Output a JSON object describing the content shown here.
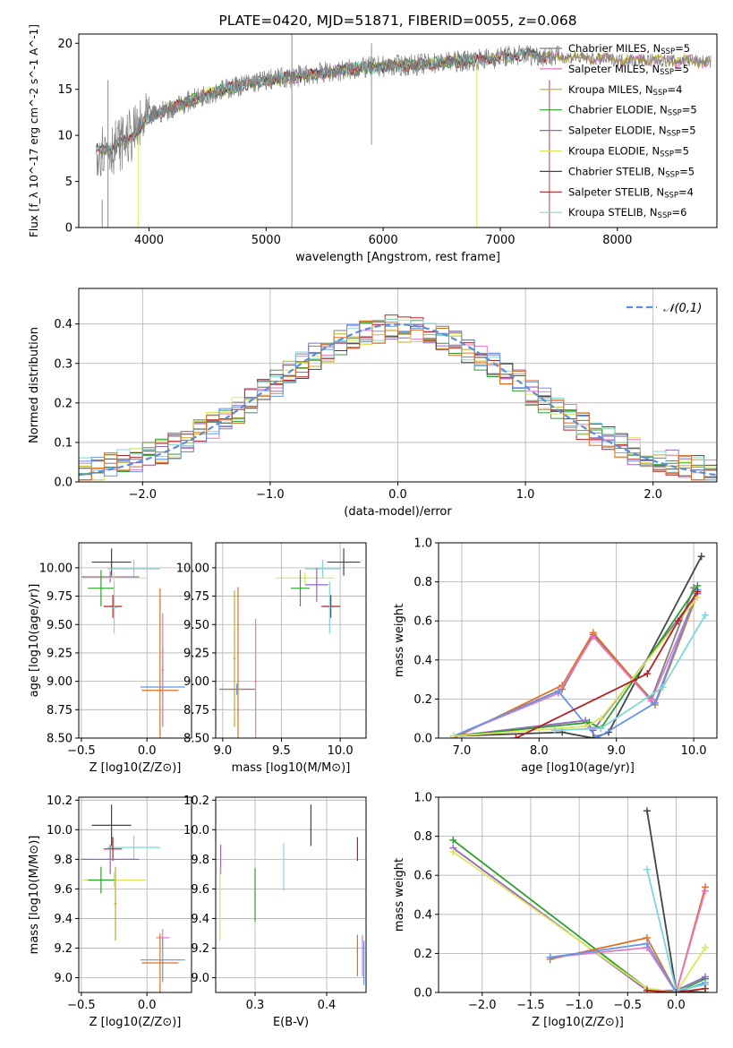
{
  "figure_title": "PLATE=0420, MJD=51871, FIBERID=0055, z=0.068",
  "colors": {
    "Chabrier MILES": "#7f7f7f",
    "Salpeter MILES": "#e377c2",
    "Kroupa MILES": "#bcae20",
    "Chabrier ELODIE": "#2ca02c",
    "Salpeter ELODIE": "#9467bd",
    "Kroupa ELODIE": "#dbe65a",
    "Chabrier STELIB": "#444444",
    "Salpeter STELIB": "#b22222",
    "Kroupa STELIB": "#7fd6da",
    "extra_blue": "#6495ed",
    "extra_orange": "#e07020",
    "grid": "#b0b0b0"
  },
  "chart_data": [
    {
      "type": "line",
      "panel": "spectrum",
      "xlabel": "wavelength [Angstrom, rest frame]",
      "ylabel": "Flux [f_λ 10^-17 erg cm^-2 s^-1 A^-1]",
      "xlim": [
        3400,
        8850
      ],
      "ylim": [
        0,
        21
      ],
      "xticks": [
        4000,
        5000,
        6000,
        7000,
        8000
      ],
      "yticks": [
        0,
        5,
        10,
        15,
        20
      ],
      "grid": false,
      "legend_position": "right",
      "legend": [
        {
          "label": "Chabrier MILES, N",
          "sub": "SSP",
          "suffix": "=5"
        },
        {
          "label": "Salpeter MILES, N",
          "sub": "SSP",
          "suffix": "=5"
        },
        {
          "label": "Kroupa MILES, N",
          "sub": "SSP",
          "suffix": "=4"
        },
        {
          "label": "Chabrier ELODIE, N",
          "sub": "SSP",
          "suffix": "=5"
        },
        {
          "label": "Salpeter ELODIE, N",
          "sub": "SSP",
          "suffix": "=5"
        },
        {
          "label": "Kroupa ELODIE, N",
          "sub": "SSP",
          "suffix": "=5"
        },
        {
          "label": "Chabrier STELIB, N",
          "sub": "SSP",
          "suffix": "=5"
        },
        {
          "label": "Salpeter STELIB, N",
          "sub": "SSP",
          "suffix": "=4"
        },
        {
          "label": "Kroupa STELIB, N",
          "sub": "SSP",
          "suffix": "=6"
        }
      ],
      "continuum": {
        "x": [
          3550,
          3700,
          3800,
          3900,
          4000,
          4100,
          4300,
          4500,
          4800,
          5000,
          5200,
          5500,
          5800,
          6000,
          6300,
          6600,
          6800,
          7000,
          7200,
          7400,
          7600,
          7800,
          8000,
          8200,
          8400,
          8600,
          8800
        ],
        "y": [
          8.5,
          8.7,
          9.5,
          10.5,
          12,
          12.5,
          13.5,
          14.5,
          15.5,
          16,
          16.3,
          16.8,
          17.3,
          17.5,
          17.7,
          18,
          18.2,
          18.5,
          18.8,
          18.6,
          18.5,
          18.3,
          18.2,
          18.2,
          18.1,
          18.1,
          18
        ]
      }
    },
    {
      "type": "bar",
      "panel": "residual histogram",
      "xlabel": "(data-model)/error",
      "ylabel": "Normed distribution",
      "xlim": [
        -2.5,
        2.5
      ],
      "ylim": [
        0,
        0.49
      ],
      "xticks": [
        -2,
        -1,
        0,
        1,
        2
      ],
      "yticks": [
        0.0,
        0.1,
        0.2,
        0.3,
        0.4
      ],
      "grid": true,
      "legend_position": "top-right",
      "legend": "𝒩(0,1)",
      "gaussian": {
        "mu": 0,
        "sigma": 1
      }
    },
    {
      "type": "scatter",
      "panel": "age vs Z",
      "xlabel": "Z [log10(Z/Z⊙)]",
      "ylabel": "age  [log10(age/yr)]",
      "xlim": [
        -0.52,
        0.34
      ],
      "ylim": [
        8.5,
        10.22
      ],
      "xticks": [
        -0.5,
        0.0
      ],
      "yticks": [
        8.5,
        8.75,
        9.0,
        9.25,
        9.5,
        9.75,
        10.0
      ],
      "grid": true,
      "points": [
        {
          "series": "Chabrier STELIB",
          "x": -0.27,
          "xerr": 0.15,
          "y": 10.05,
          "yerr": 0.12
        },
        {
          "series": "Kroupa STELIB",
          "x": -0.1,
          "xerr": 0.2,
          "y": 9.99,
          "yerr": 0.08
        },
        {
          "series": "Salpeter ELODIE",
          "x": -0.28,
          "xerr": 0.22,
          "y": 9.92,
          "yerr": 0.05
        },
        {
          "series": "Kroupa ELODIE",
          "x": -0.25,
          "xerr": 0.24,
          "y": 9.91,
          "yerr": 0.05
        },
        {
          "series": "Chabrier ELODIE",
          "x": -0.35,
          "xerr": 0.1,
          "y": 9.82,
          "yerr": 0.16
        },
        {
          "series": "Salpeter STELIB",
          "x": -0.26,
          "xerr": 0.07,
          "y": 9.66,
          "yerr": 0.1
        },
        {
          "series": "Kroupa STELIB",
          "x": -0.25,
          "xerr": 0.02,
          "y": 9.65,
          "yerr": 0.23
        },
        {
          "series": "extra_blue",
          "x": 0.12,
          "xerr": 0.17,
          "y": 8.95,
          "yerr": 0.35
        },
        {
          "series": "extra_orange",
          "x": 0.1,
          "xerr": 0.14,
          "y": 8.92,
          "yerr": 0.9
        },
        {
          "series": "Salpeter MILES",
          "x": 0.12,
          "xerr": 0.01,
          "y": 9.1,
          "yerr": 0.5
        }
      ]
    },
    {
      "type": "scatter",
      "panel": "age vs mass",
      "xlabel": "mass [log10(M/M⊙)]",
      "ylabel": "",
      "xlim": [
        8.94,
        10.22
      ],
      "ylim": [
        8.5,
        10.22
      ],
      "xticks": [
        9.0,
        9.5,
        10.0
      ],
      "yticks": [
        8.5,
        8.75,
        9.0,
        9.25,
        9.5,
        9.75,
        10.0
      ],
      "grid": true,
      "points": [
        {
          "series": "Chabrier STELIB",
          "x": 10.03,
          "xerr": 0.14,
          "y": 10.05,
          "yerr": 0.12
        },
        {
          "series": "Kroupa STELIB",
          "x": 9.85,
          "xerr": 0.15,
          "y": 9.99,
          "yerr": 0.08
        },
        {
          "series": "Kroupa ELODIE",
          "x": 9.7,
          "xerr": 0.25,
          "y": 9.91,
          "yerr": 0.05
        },
        {
          "series": "Chabrier ELODIE",
          "x": 9.66,
          "xerr": 0.08,
          "y": 9.82,
          "yerr": 0.16
        },
        {
          "series": "Salpeter ELODIE",
          "x": 9.8,
          "xerr": 0.1,
          "y": 9.85,
          "yerr": 0.15
        },
        {
          "series": "Salpeter STELIB",
          "x": 9.92,
          "xerr": 0.08,
          "y": 9.66,
          "yerr": 0.1
        },
        {
          "series": "Kroupa STELIB",
          "x": 9.91,
          "xerr": 0.01,
          "y": 9.65,
          "yerr": 0.23
        },
        {
          "series": "extra_blue",
          "x": 9.12,
          "xerr": 0.15,
          "y": 8.93,
          "yerr": 0.05
        },
        {
          "series": "extra_orange",
          "x": 9.13,
          "xerr": 0.15,
          "y": 8.93,
          "yerr": 0.9
        },
        {
          "series": "Salpeter MILES",
          "x": 9.28,
          "xerr": 0.01,
          "y": 9.0,
          "yerr": 0.55
        },
        {
          "series": "Kroupa MILES",
          "x": 9.1,
          "xerr": 0.01,
          "y": 9.2,
          "yerr": 0.6
        }
      ]
    },
    {
      "type": "line",
      "panel": "mass weight vs age",
      "xlabel": "age  [log10(age/yr)]",
      "ylabel": "mass weight",
      "xlim": [
        6.7,
        10.3
      ],
      "ylim": [
        0,
        1.0
      ],
      "xticks": [
        7,
        8,
        9,
        10
      ],
      "yticks": [
        0.0,
        0.2,
        0.4,
        0.6,
        0.8,
        1.0
      ],
      "grid": true,
      "series": [
        {
          "name": "Chabrier STELIB",
          "x": [
            6.9,
            8.3,
            8.7,
            8.9,
            10.1
          ],
          "y": [
            0.01,
            0.03,
            0.0,
            0.03,
            0.93
          ]
        },
        {
          "name": "Chabrier MILES",
          "x": [
            6.9,
            8.3,
            8.7,
            9.45,
            10.0
          ],
          "y": [
            0.01,
            0.25,
            0.53,
            0.2,
            0.77
          ]
        },
        {
          "name": "extra_orange",
          "x": [
            6.9,
            8.3,
            8.7,
            9.5,
            10.05
          ],
          "y": [
            0.0,
            0.27,
            0.54,
            0.17,
            0.74
          ]
        },
        {
          "name": "Salpeter MILES",
          "x": [
            6.9,
            8.25,
            8.7,
            9.45,
            10.05
          ],
          "y": [
            0.01,
            0.23,
            0.52,
            0.19,
            0.75
          ]
        },
        {
          "name": "extra_blue",
          "x": [
            6.9,
            8.25,
            8.75,
            9.5,
            10.05
          ],
          "y": [
            0.01,
            0.24,
            0.0,
            0.18,
            0.76
          ]
        },
        {
          "name": "Salpeter ELODIE",
          "x": [
            6.9,
            8.6,
            8.7,
            10.05
          ],
          "y": [
            0.01,
            0.09,
            0.04,
            0.74
          ]
        },
        {
          "name": "Chabrier ELODIE",
          "x": [
            6.9,
            8.65,
            8.8,
            10.05
          ],
          "y": [
            0.01,
            0.08,
            0.05,
            0.78
          ]
        },
        {
          "name": "Kroupa ELODIE",
          "x": [
            6.9,
            8.6,
            8.8,
            10.05
          ],
          "y": [
            0.01,
            0.06,
            0.1,
            0.72
          ]
        },
        {
          "name": "Salpeter STELIB",
          "x": [
            7.7,
            9.4,
            9.8,
            10.05
          ],
          "y": [
            0.0,
            0.33,
            0.6,
            0.75
          ]
        },
        {
          "name": "Kroupa STELIB",
          "x": [
            8.2,
            8.8,
            9.6,
            10.15
          ],
          "y": [
            0.04,
            0.05,
            0.26,
            0.63
          ]
        }
      ]
    },
    {
      "type": "scatter",
      "panel": "mass vs Z",
      "xlabel": "Z [log10(Z/Z⊙)]",
      "ylabel": "mass [log10(M/M⊙)]",
      "xlim": [
        -0.52,
        0.34
      ],
      "ylim": [
        8.9,
        10.22
      ],
      "xticks": [
        -0.5,
        0.0
      ],
      "yticks": [
        9.0,
        9.2,
        9.4,
        9.6,
        9.8,
        10.0,
        10.2
      ],
      "grid": true,
      "points": [
        {
          "series": "Chabrier STELIB",
          "x": -0.27,
          "xerr": 0.15,
          "y": 10.03,
          "yerr": 0.14
        },
        {
          "series": "Kroupa STELIB",
          "x": -0.1,
          "xerr": 0.2,
          "y": 9.88,
          "yerr": 0.08
        },
        {
          "series": "Salpeter STELIB",
          "x": -0.26,
          "xerr": 0.07,
          "y": 9.87,
          "yerr": 0.08
        },
        {
          "series": "Salpeter ELODIE",
          "x": -0.28,
          "xerr": 0.22,
          "y": 9.8,
          "yerr": 0.1
        },
        {
          "series": "Kroupa ELODIE",
          "x": -0.25,
          "xerr": 0.24,
          "y": 9.66,
          "yerr": 0.05
        },
        {
          "series": "Chabrier ELODIE",
          "x": -0.35,
          "xerr": 0.1,
          "y": 9.66,
          "yerr": 0.09
        },
        {
          "series": "Kroupa MILES",
          "x": -0.24,
          "xerr": 0.01,
          "y": 9.5,
          "yerr": 0.25
        },
        {
          "series": "Salpeter MILES",
          "x": 0.12,
          "xerr": 0.05,
          "y": 9.27,
          "yerr": 0.06
        },
        {
          "series": "extra_blue",
          "x": 0.12,
          "xerr": 0.17,
          "y": 9.12,
          "yerr": 0.15
        },
        {
          "series": "extra_orange",
          "x": 0.1,
          "xerr": 0.14,
          "y": 9.1,
          "yerr": 0.2
        }
      ]
    },
    {
      "type": "scatter",
      "panel": "mass vs E(B-V)",
      "xlabel": "E(B-V)",
      "ylabel": "",
      "xlim": [
        0.245,
        0.455
      ],
      "ylim": [
        8.9,
        10.22
      ],
      "xticks": [
        0.3,
        0.4
      ],
      "yticks": [
        9.0,
        9.2,
        9.4,
        9.6,
        9.8,
        10.0,
        10.2
      ],
      "grid": true,
      "points": [
        {
          "series": "Chabrier STELIB",
          "x": 0.378,
          "y": 10.03,
          "yerr": 0.14
        },
        {
          "series": "Salpeter STELIB",
          "x": 0.443,
          "y": 9.87,
          "yerr": 0.08
        },
        {
          "series": "Salpeter ELODIE",
          "x": 0.252,
          "y": 9.8,
          "yerr": 0.1
        },
        {
          "series": "Kroupa STELIB",
          "x": 0.34,
          "y": 9.75,
          "yerr": 0.16
        },
        {
          "series": "Chabrier ELODIE",
          "x": 0.3,
          "y": 9.56,
          "yerr": 0.18
        },
        {
          "series": "Kroupa ELODIE",
          "x": 0.251,
          "y": 9.5,
          "yerr": 0.25
        },
        {
          "series": "extra_orange",
          "x": 0.443,
          "y": 9.15,
          "yerr": 0.14
        },
        {
          "series": "Salpeter MILES",
          "x": 0.45,
          "y": 9.15,
          "yerr": 0.14
        },
        {
          "series": "extra_blue",
          "x": 0.452,
          "y": 9.1,
          "yerr": 0.15
        }
      ]
    },
    {
      "type": "line",
      "panel": "mass weight vs Z",
      "xlabel": "Z [log10(Z/Z⊙)]",
      "ylabel": "mass weight",
      "xlim": [
        -2.45,
        0.42
      ],
      "ylim": [
        0,
        1.0
      ],
      "xticks": [
        -2.0,
        -1.5,
        -1.0,
        -0.5,
        0.0
      ],
      "yticks": [
        0.0,
        0.2,
        0.4,
        0.6,
        0.8,
        1.0
      ],
      "grid": true,
      "series": [
        {
          "name": "Chabrier ELODIE",
          "x": [
            -2.3,
            -0.3,
            0.0,
            0.3
          ],
          "y": [
            0.78,
            0.02,
            0.0,
            0.07
          ]
        },
        {
          "name": "Salpeter ELODIE",
          "x": [
            -2.3,
            -0.3,
            0.0,
            0.3
          ],
          "y": [
            0.74,
            0.01,
            0.01,
            0.08
          ]
        },
        {
          "name": "Kroupa ELODIE",
          "x": [
            -2.3,
            -0.3,
            0.0,
            0.3
          ],
          "y": [
            0.72,
            0.02,
            0.0,
            0.23
          ]
        },
        {
          "name": "extra_orange",
          "x": [
            -1.3,
            -0.3,
            0.0,
            0.3
          ],
          "y": [
            0.17,
            0.28,
            0.0,
            0.54
          ]
        },
        {
          "name": "Salpeter MILES",
          "x": [
            -1.3,
            -0.3,
            0.0,
            0.3
          ],
          "y": [
            0.18,
            0.23,
            0.0,
            0.52
          ]
        },
        {
          "name": "extra_blue",
          "x": [
            -1.3,
            -0.3,
            0.0,
            0.3
          ],
          "y": [
            0.18,
            0.25,
            0.0,
            0.05
          ]
        },
        {
          "name": "Chabrier STELIB",
          "x": [
            -0.3,
            0.0,
            0.3
          ],
          "y": [
            0.93,
            0.01,
            0.0
          ]
        },
        {
          "name": "Kroupa STELIB",
          "x": [
            -0.3,
            0.0,
            0.3
          ],
          "y": [
            0.63,
            0.01,
            0.04
          ]
        },
        {
          "name": "Salpeter STELIB",
          "x": [
            -0.3,
            0.0,
            0.3
          ],
          "y": [
            0.01,
            0.0,
            0.02
          ]
        }
      ]
    }
  ]
}
